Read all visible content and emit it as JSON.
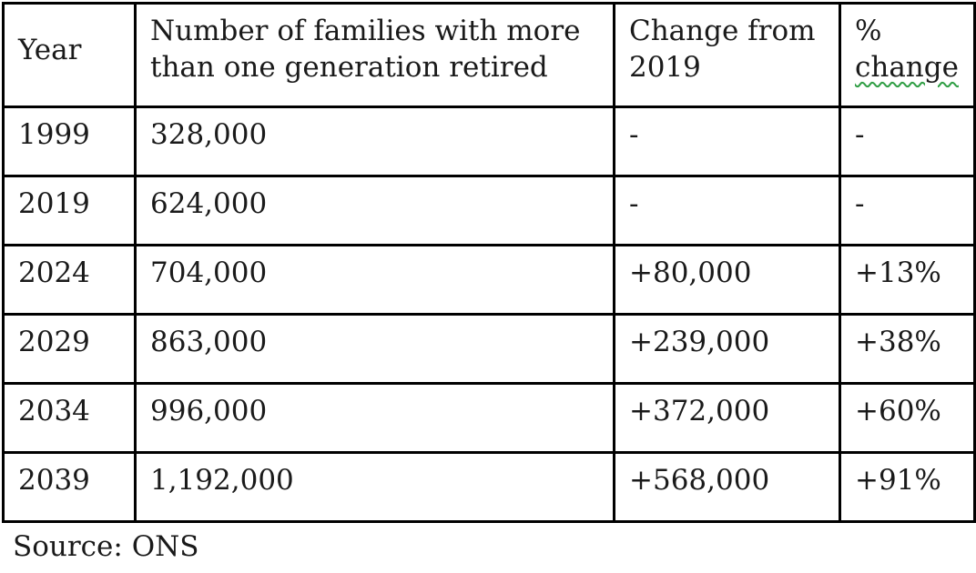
{
  "table": {
    "columns": [
      {
        "label": "Year"
      },
      {
        "label": "Number of families with more than one generation retired"
      },
      {
        "label": "Change from 2019"
      },
      {
        "label": "% change",
        "line1": "%",
        "line2": "change"
      }
    ],
    "rows": [
      {
        "year": "1999",
        "families": "328,000",
        "change": "-",
        "pct_change": "-"
      },
      {
        "year": "2019",
        "families": "624,000",
        "change": "-",
        "pct_change": "-"
      },
      {
        "year": "2024",
        "families": "704,000",
        "change": "+80,000",
        "pct_change": "+13%"
      },
      {
        "year": "2029",
        "families": "863,000",
        "change": "+239,000",
        "pct_change": "+38%"
      },
      {
        "year": "2034",
        "families": "996,000",
        "change": "+372,000",
        "pct_change": "+60%"
      },
      {
        "year": "2039",
        "families": "1,192,000",
        "change": "+568,000",
        "pct_change": "+91%"
      }
    ]
  },
  "source_note": "Source: ONS",
  "chart_data": {
    "type": "table",
    "title": "Number of families with more than one generation retired",
    "columns": [
      "Year",
      "Number of families with more than one generation retired",
      "Change from 2019",
      "% change"
    ],
    "years": [
      1999,
      2019,
      2024,
      2029,
      2034,
      2039
    ],
    "families": [
      328000,
      624000,
      704000,
      863000,
      996000,
      1192000
    ],
    "change_from_2019": [
      null,
      null,
      80000,
      239000,
      372000,
      568000
    ],
    "pct_change_from_2019": [
      null,
      null,
      13,
      38,
      60,
      91
    ],
    "source": "ONS"
  },
  "colors": {
    "border": "#000000",
    "text": "#1a1a1a",
    "grammar_squiggle_green": "#2f9e44",
    "background": "#ffffff"
  }
}
